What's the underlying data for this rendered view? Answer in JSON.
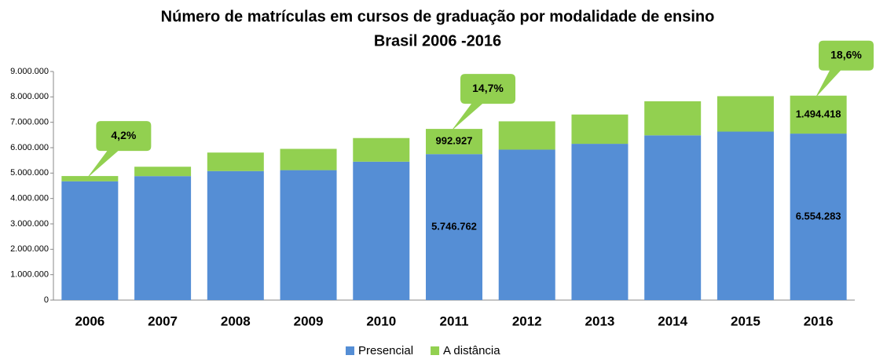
{
  "chart_data": {
    "type": "stacked_bar",
    "title": "Número de matrículas em cursos de graduação por modalidade de ensino",
    "subtitle": "Brasil 2006 -2016",
    "categories": [
      "2006",
      "2007",
      "2008",
      "2009",
      "2010",
      "2011",
      "2012",
      "2013",
      "2014",
      "2015",
      "2016"
    ],
    "series": [
      {
        "name": "Presencial",
        "color": "#558ed5",
        "values": [
          4676646,
          4880381,
          5080056,
          5115896,
          5449120,
          5746762,
          5923838,
          6152405,
          6486171,
          6633545,
          6554283
        ],
        "value_labels": [
          null,
          null,
          null,
          null,
          null,
          "5.746.762",
          null,
          null,
          null,
          null,
          "6.554.283"
        ]
      },
      {
        "name": "A distância",
        "color": "#92d050",
        "values": [
          207206,
          369766,
          727961,
          838125,
          930179,
          992927,
          1113850,
          1153572,
          1341842,
          1393752,
          1494418
        ],
        "value_labels": [
          null,
          null,
          null,
          null,
          null,
          "992.927",
          null,
          null,
          null,
          null,
          "1.494.418"
        ]
      }
    ],
    "annotations": [
      {
        "text": "4,2%",
        "category": "2006"
      },
      {
        "text": "14,7%",
        "category": "2011"
      },
      {
        "text": "18,6%",
        "category": "2016"
      }
    ],
    "ylim": [
      0,
      9000000
    ],
    "yticks": [
      0,
      {
        "value": 1000000,
        "label": "1.000.000"
      },
      {
        "value": 2000000,
        "label": "2.000.000"
      },
      {
        "value": 3000000,
        "label": "3.000.000"
      },
      {
        "value": 4000000,
        "label": "4.000.000"
      },
      {
        "value": 5000000,
        "label": "5.000.000"
      },
      {
        "value": 6000000,
        "label": "6.000.000"
      },
      {
        "value": 7000000,
        "label": "7.000.000"
      },
      {
        "value": 8000000,
        "label": "8.000.000"
      },
      {
        "value": 9000000,
        "label": "9.000.000"
      }
    ],
    "grid": false,
    "legend": "bottom"
  }
}
